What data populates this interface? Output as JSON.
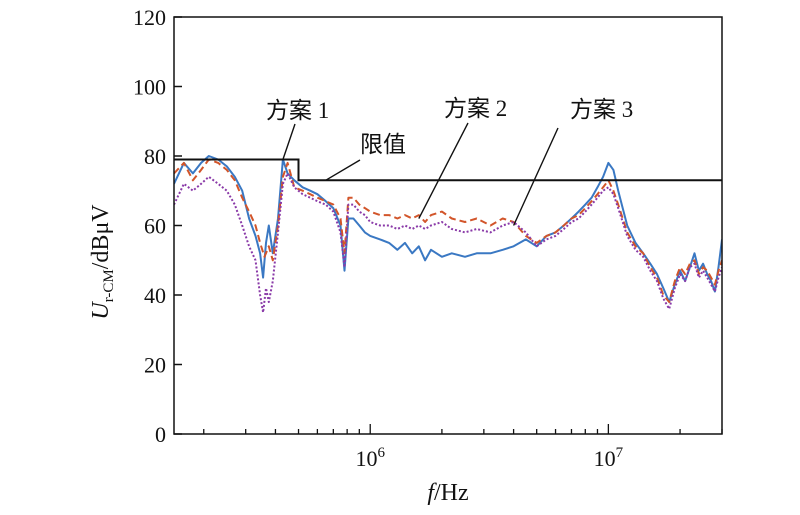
{
  "chart_data": {
    "type": "line",
    "title": "",
    "x_scale": "log",
    "xlim": [
      150000,
      30000000
    ],
    "ylim": [
      0,
      120
    ],
    "grid": false,
    "legend": "none",
    "xlabel": {
      "main": "f",
      "unit": "/Hz"
    },
    "ylabel": {
      "main": "U",
      "sub": "r-CM",
      "unit": "/dBμV"
    },
    "y_ticks": [
      0,
      20,
      40,
      60,
      80,
      100,
      120
    ],
    "x_ticks": [
      {
        "value": 1000000,
        "base": "10",
        "exp": "6"
      },
      {
        "value": 10000000,
        "base": "10",
        "exp": "7"
      }
    ],
    "limit": {
      "label": "限值",
      "points": [
        [
          150000,
          79
        ],
        [
          500000,
          79
        ],
        [
          500000,
          73
        ],
        [
          30000000,
          73
        ]
      ],
      "color": "#111111"
    },
    "series": [
      {
        "name": "方案 1",
        "color": "#3a78c3",
        "dash": "",
        "points": [
          [
            150000,
            72
          ],
          [
            165000,
            78
          ],
          [
            180000,
            75
          ],
          [
            195000,
            78
          ],
          [
            210000,
            80
          ],
          [
            230000,
            79
          ],
          [
            250000,
            77
          ],
          [
            270000,
            74
          ],
          [
            290000,
            70
          ],
          [
            310000,
            62
          ],
          [
            330000,
            57
          ],
          [
            345000,
            52
          ],
          [
            355000,
            45
          ],
          [
            365000,
            55
          ],
          [
            375000,
            60
          ],
          [
            390000,
            52
          ],
          [
            410000,
            62
          ],
          [
            430000,
            79
          ],
          [
            450000,
            75
          ],
          [
            480000,
            73
          ],
          [
            520000,
            71
          ],
          [
            560000,
            70
          ],
          [
            600000,
            69
          ],
          [
            650000,
            67
          ],
          [
            700000,
            65
          ],
          [
            750000,
            60
          ],
          [
            780000,
            47
          ],
          [
            810000,
            62
          ],
          [
            850000,
            62
          ],
          [
            900000,
            60
          ],
          [
            950000,
            58
          ],
          [
            1000000,
            57
          ],
          [
            1100000,
            56
          ],
          [
            1200000,
            55
          ],
          [
            1300000,
            53
          ],
          [
            1400000,
            55
          ],
          [
            1500000,
            52
          ],
          [
            1600000,
            54
          ],
          [
            1700000,
            50
          ],
          [
            1800000,
            53
          ],
          [
            2000000,
            51
          ],
          [
            2200000,
            52
          ],
          [
            2500000,
            51
          ],
          [
            2800000,
            52
          ],
          [
            3200000,
            52
          ],
          [
            3600000,
            53
          ],
          [
            4000000,
            54
          ],
          [
            4500000,
            56
          ],
          [
            5000000,
            54
          ],
          [
            5500000,
            57
          ],
          [
            6000000,
            58
          ],
          [
            6500000,
            60
          ],
          [
            7000000,
            62
          ],
          [
            7500000,
            64
          ],
          [
            8000000,
            66
          ],
          [
            8500000,
            68
          ],
          [
            9000000,
            71
          ],
          [
            9500000,
            74
          ],
          [
            10000000,
            78
          ],
          [
            10500000,
            76
          ],
          [
            11000000,
            70
          ],
          [
            12000000,
            60
          ],
          [
            13000000,
            55
          ],
          [
            14000000,
            52
          ],
          [
            15000000,
            49
          ],
          [
            16000000,
            46
          ],
          [
            17000000,
            42
          ],
          [
            18000000,
            38
          ],
          [
            19000000,
            43
          ],
          [
            20000000,
            47
          ],
          [
            21000000,
            44
          ],
          [
            22000000,
            48
          ],
          [
            23000000,
            52
          ],
          [
            24000000,
            47
          ],
          [
            25000000,
            49
          ],
          [
            26000000,
            46
          ],
          [
            27000000,
            44
          ],
          [
            28000000,
            41
          ],
          [
            29000000,
            48
          ],
          [
            30000000,
            56
          ]
        ]
      },
      {
        "name": "方案 2",
        "color": "#d2552a",
        "dash": "7 4",
        "points": [
          [
            150000,
            75
          ],
          [
            165000,
            78
          ],
          [
            180000,
            73
          ],
          [
            195000,
            76
          ],
          [
            210000,
            79
          ],
          [
            230000,
            78
          ],
          [
            250000,
            76
          ],
          [
            270000,
            73
          ],
          [
            290000,
            68
          ],
          [
            310000,
            64
          ],
          [
            330000,
            60
          ],
          [
            345000,
            55
          ],
          [
            360000,
            51
          ],
          [
            375000,
            54
          ],
          [
            390000,
            50
          ],
          [
            410000,
            60
          ],
          [
            430000,
            74
          ],
          [
            450000,
            78
          ],
          [
            480000,
            71
          ],
          [
            520000,
            70
          ],
          [
            560000,
            69
          ],
          [
            600000,
            68
          ],
          [
            650000,
            67
          ],
          [
            700000,
            66
          ],
          [
            750000,
            62
          ],
          [
            780000,
            52
          ],
          [
            810000,
            68
          ],
          [
            850000,
            68
          ],
          [
            900000,
            66
          ],
          [
            950000,
            65
          ],
          [
            1000000,
            64
          ],
          [
            1100000,
            63
          ],
          [
            1200000,
            63
          ],
          [
            1300000,
            62
          ],
          [
            1400000,
            63
          ],
          [
            1500000,
            62
          ],
          [
            1600000,
            63
          ],
          [
            1700000,
            61
          ],
          [
            1800000,
            63
          ],
          [
            2000000,
            64
          ],
          [
            2200000,
            62
          ],
          [
            2500000,
            61
          ],
          [
            2800000,
            62
          ],
          [
            3200000,
            60
          ],
          [
            3600000,
            62
          ],
          [
            4000000,
            61
          ],
          [
            4500000,
            57
          ],
          [
            5000000,
            55
          ],
          [
            5500000,
            57
          ],
          [
            6000000,
            58
          ],
          [
            6500000,
            60
          ],
          [
            7000000,
            62
          ],
          [
            7500000,
            63
          ],
          [
            8000000,
            65
          ],
          [
            8500000,
            67
          ],
          [
            9000000,
            69
          ],
          [
            9500000,
            71
          ],
          [
            10000000,
            73
          ],
          [
            10500000,
            70
          ],
          [
            11000000,
            66
          ],
          [
            12000000,
            58
          ],
          [
            13000000,
            54
          ],
          [
            14000000,
            52
          ],
          [
            15000000,
            48
          ],
          [
            16000000,
            45
          ],
          [
            17000000,
            40
          ],
          [
            18000000,
            38
          ],
          [
            19000000,
            44
          ],
          [
            20000000,
            48
          ],
          [
            21000000,
            46
          ],
          [
            22000000,
            49
          ],
          [
            23000000,
            50
          ],
          [
            24000000,
            46
          ],
          [
            25000000,
            48
          ],
          [
            26000000,
            47
          ],
          [
            27000000,
            45
          ],
          [
            28000000,
            43
          ],
          [
            29000000,
            47
          ],
          [
            30000000,
            50
          ]
        ]
      },
      {
        "name": "方案 3",
        "color": "#8a3aa8",
        "dash": "2 2",
        "points": [
          [
            150000,
            66
          ],
          [
            165000,
            72
          ],
          [
            180000,
            70
          ],
          [
            195000,
            72
          ],
          [
            210000,
            74
          ],
          [
            230000,
            72
          ],
          [
            250000,
            70
          ],
          [
            270000,
            66
          ],
          [
            290000,
            60
          ],
          [
            310000,
            54
          ],
          [
            330000,
            50
          ],
          [
            345000,
            40
          ],
          [
            355000,
            35
          ],
          [
            365000,
            42
          ],
          [
            375000,
            38
          ],
          [
            390000,
            44
          ],
          [
            410000,
            58
          ],
          [
            430000,
            72
          ],
          [
            450000,
            75
          ],
          [
            480000,
            71
          ],
          [
            520000,
            69
          ],
          [
            560000,
            68
          ],
          [
            600000,
            67
          ],
          [
            650000,
            66
          ],
          [
            700000,
            64
          ],
          [
            750000,
            58
          ],
          [
            780000,
            48
          ],
          [
            810000,
            66
          ],
          [
            850000,
            66
          ],
          [
            900000,
            64
          ],
          [
            950000,
            63
          ],
          [
            1000000,
            61
          ],
          [
            1100000,
            60
          ],
          [
            1200000,
            60
          ],
          [
            1300000,
            59
          ],
          [
            1400000,
            60
          ],
          [
            1500000,
            59
          ],
          [
            1600000,
            60
          ],
          [
            1700000,
            59
          ],
          [
            1800000,
            60
          ],
          [
            2000000,
            61
          ],
          [
            2200000,
            59
          ],
          [
            2500000,
            58
          ],
          [
            2800000,
            59
          ],
          [
            3200000,
            58
          ],
          [
            3600000,
            60
          ],
          [
            4000000,
            61
          ],
          [
            4500000,
            58
          ],
          [
            5000000,
            54
          ],
          [
            5500000,
            56
          ],
          [
            6000000,
            57
          ],
          [
            6500000,
            59
          ],
          [
            7000000,
            61
          ],
          [
            7500000,
            62
          ],
          [
            8000000,
            64
          ],
          [
            8500000,
            66
          ],
          [
            9000000,
            68
          ],
          [
            9500000,
            70
          ],
          [
            10000000,
            71
          ],
          [
            10500000,
            69
          ],
          [
            11000000,
            65
          ],
          [
            12000000,
            57
          ],
          [
            13000000,
            53
          ],
          [
            14000000,
            51
          ],
          [
            15000000,
            47
          ],
          [
            16000000,
            44
          ],
          [
            17000000,
            39
          ],
          [
            18000000,
            36
          ],
          [
            19000000,
            42
          ],
          [
            20000000,
            46
          ],
          [
            21000000,
            44
          ],
          [
            22000000,
            48
          ],
          [
            23000000,
            49
          ],
          [
            24000000,
            45
          ],
          [
            25000000,
            47
          ],
          [
            26000000,
            45
          ],
          [
            27000000,
            43
          ],
          [
            28000000,
            41
          ],
          [
            29000000,
            45
          ],
          [
            30000000,
            48
          ]
        ]
      }
    ],
    "annotations": [
      {
        "text": "方案 1",
        "target": [
          430000,
          79
        ]
      },
      {
        "text": "方案 2",
        "target": [
          1600000,
          62
        ]
      },
      {
        "text": "方案 3",
        "target": [
          4000000,
          60
        ]
      },
      {
        "text": "限值",
        "target": [
          650000,
          73
        ]
      }
    ]
  }
}
